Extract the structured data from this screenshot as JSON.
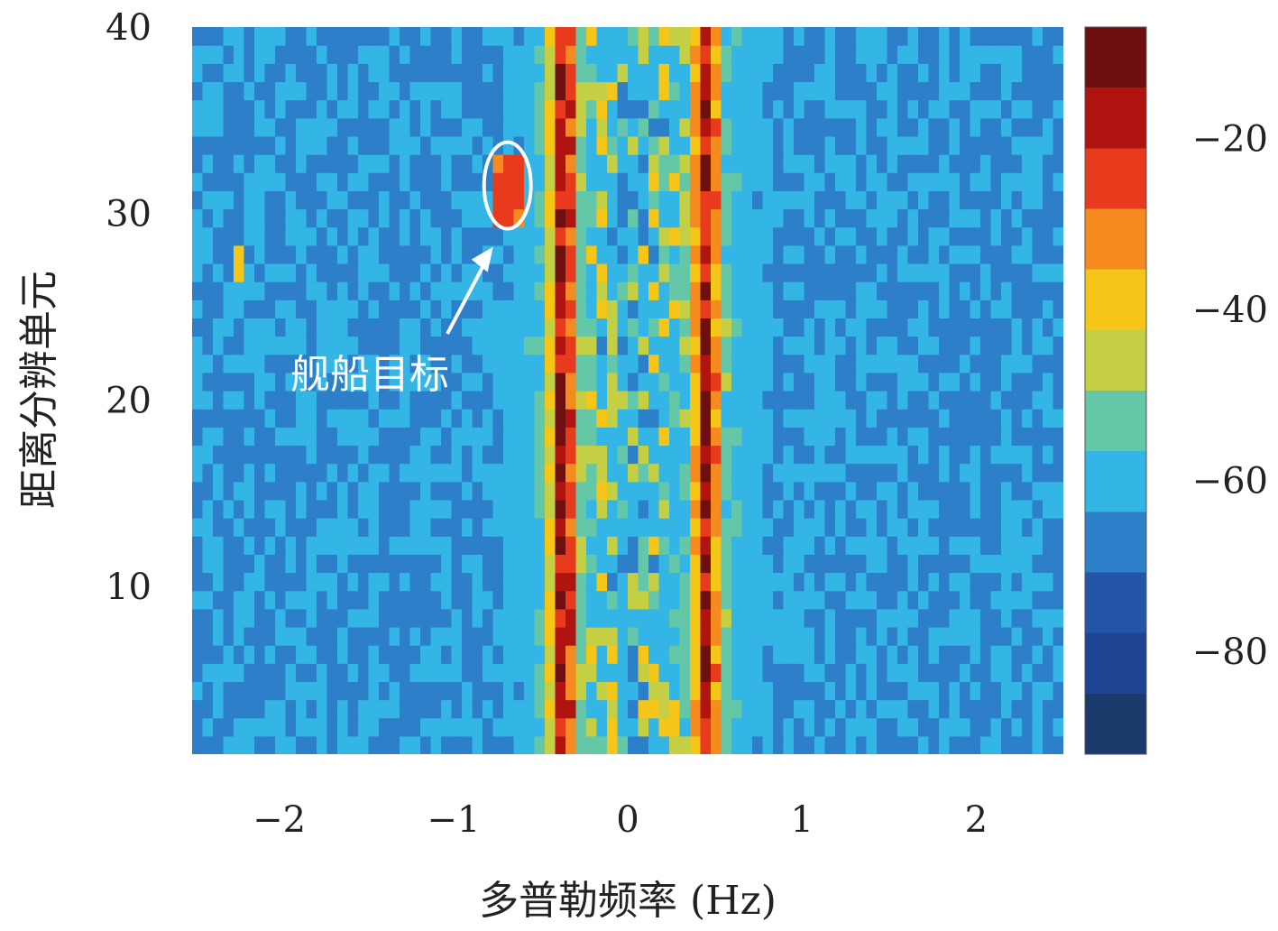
{
  "chart_data": {
    "type": "heatmap",
    "title": "",
    "xlabel": "多普勒频率 (Hz)",
    "ylabel": "距离分辨单元",
    "xlim": [
      -2.5,
      2.5
    ],
    "ylim": [
      1,
      40
    ],
    "x_ticks": [
      "−2",
      "−1",
      "0",
      "1",
      "2"
    ],
    "x_tick_values": [
      -2,
      -1,
      0,
      1,
      2
    ],
    "y_ticks": [
      "10",
      "20",
      "30",
      "40"
    ],
    "y_tick_values": [
      10,
      20,
      30,
      40
    ],
    "colorbar": {
      "range": [
        -92,
        -7
      ],
      "ticks": [
        "−20",
        "−40",
        "−60",
        "−80"
      ],
      "tick_values": [
        -20,
        -40,
        -60,
        -80
      ],
      "colormap": [
        "#1a3a6c",
        "#1f4494",
        "#2356a8",
        "#2c7fc8",
        "#33b5e6",
        "#63c7a8",
        "#c4cf44",
        "#f5c518",
        "#f58a1e",
        "#e83a1c",
        "#b01410",
        "#6e1010"
      ]
    },
    "background_level": -64,
    "ridges": [
      {
        "doppler_hz": -0.37,
        "peak_level": -12
      },
      {
        "doppler_hz": 0.45,
        "peak_level": -12
      },
      {
        "doppler_hz": 0.1,
        "peak_level": -32
      }
    ],
    "target": {
      "doppler_hz": -0.69,
      "range_cell": 31.5,
      "level": -26
    },
    "annotation": {
      "text": "舰船目标"
    }
  }
}
